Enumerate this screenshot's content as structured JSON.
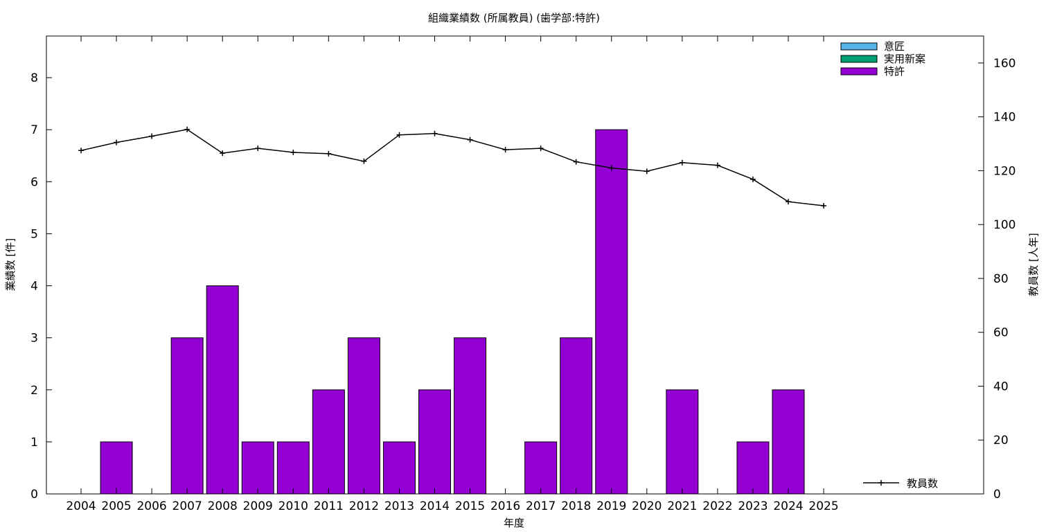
{
  "chart_data": {
    "type": "bar",
    "title": "組織業績数 (所属教員) (歯学部:特許)",
    "xlabel": "年度",
    "ylabel": "業績数 [件]",
    "y2label": "教員数 [人年]",
    "categories": [
      "2004",
      "2005",
      "2006",
      "2007",
      "2008",
      "2009",
      "2010",
      "2011",
      "2012",
      "2013",
      "2014",
      "2015",
      "2016",
      "2017",
      "2018",
      "2019",
      "2020",
      "2021",
      "2022",
      "2023",
      "2024",
      "2025"
    ],
    "ylim": [
      0,
      8.8
    ],
    "y2lim": [
      0,
      170
    ],
    "yticks": [
      0,
      1,
      2,
      3,
      4,
      5,
      6,
      7,
      8
    ],
    "y2ticks": [
      0,
      20,
      40,
      60,
      80,
      100,
      120,
      140,
      160
    ],
    "stacked": true,
    "legend_position": "top-right",
    "series": [
      {
        "name": "意匠",
        "color": "#56b4e9",
        "values": [
          0,
          0,
          0,
          0,
          0,
          0,
          0,
          0,
          0,
          0,
          0,
          0,
          0,
          0,
          0,
          0,
          0,
          0,
          0,
          0,
          0,
          0
        ]
      },
      {
        "name": "実用新案",
        "color": "#009e73",
        "values": [
          0,
          0,
          0,
          0,
          0,
          0,
          0,
          0,
          0,
          0,
          0,
          0,
          0,
          0,
          0,
          0,
          0,
          0,
          0,
          0,
          0,
          0
        ]
      },
      {
        "name": "特許",
        "color": "#9400d3",
        "values": [
          0,
          1,
          0,
          3,
          4,
          1,
          1,
          2,
          3,
          1,
          2,
          3,
          0,
          1,
          3,
          7,
          0,
          2,
          0,
          1,
          2,
          0
        ]
      }
    ],
    "line_series": {
      "name": "教員数",
      "axis": "y2",
      "color": "#000000",
      "values": [
        127.5,
        130.5,
        132.8,
        135.3,
        126.5,
        128.3,
        126.8,
        126.3,
        123.5,
        133.3,
        133.8,
        131.5,
        127.8,
        128.3,
        123.3,
        121,
        119.8,
        123,
        122,
        116.8,
        108.5,
        107
      ]
    }
  }
}
